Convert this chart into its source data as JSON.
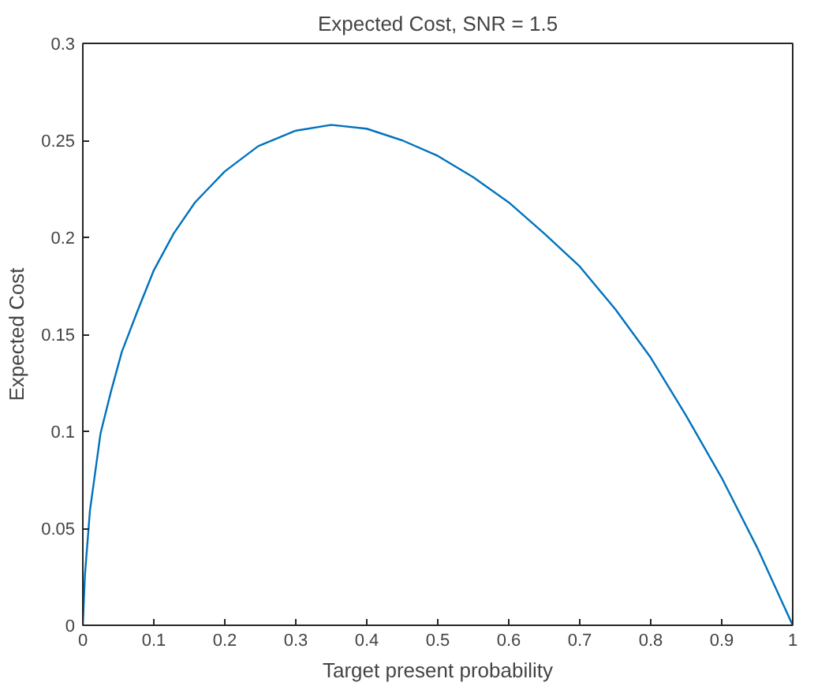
{
  "chart_data": {
    "type": "line",
    "title": "Expected Cost, SNR = 1.5",
    "xlabel": "Target present probability",
    "ylabel": "Expected Cost",
    "x": [
      0,
      0.003,
      0.01,
      0.025,
      0.04,
      0.055,
      0.077,
      0.1,
      0.128,
      0.158,
      0.2,
      0.247,
      0.3,
      0.35,
      0.4,
      0.45,
      0.5,
      0.55,
      0.6,
      0.65,
      0.7,
      0.75,
      0.8,
      0.85,
      0.9,
      0.95,
      1.0
    ],
    "series": [
      {
        "color": "#0072bd",
        "values": [
          0,
          0.026,
          0.059,
          0.099,
          0.121,
          0.141,
          0.162,
          0.183,
          0.202,
          0.218,
          0.234,
          0.247,
          0.255,
          0.258,
          0.256,
          0.25,
          0.242,
          0.231,
          0.218,
          0.202,
          0.185,
          0.163,
          0.138,
          0.108,
          0.076,
          0.04,
          0
        ]
      }
    ],
    "xlim": [
      0,
      1
    ],
    "ylim": [
      0,
      0.3
    ],
    "xticks": [
      0,
      0.1,
      0.2,
      0.3,
      0.4,
      0.5,
      0.6,
      0.7,
      0.8,
      0.9,
      1
    ],
    "yticks": [
      0,
      0.05,
      0.1,
      0.15,
      0.2,
      0.25,
      0.3
    ],
    "grid": false,
    "marker": "none",
    "line_style": "solid"
  }
}
